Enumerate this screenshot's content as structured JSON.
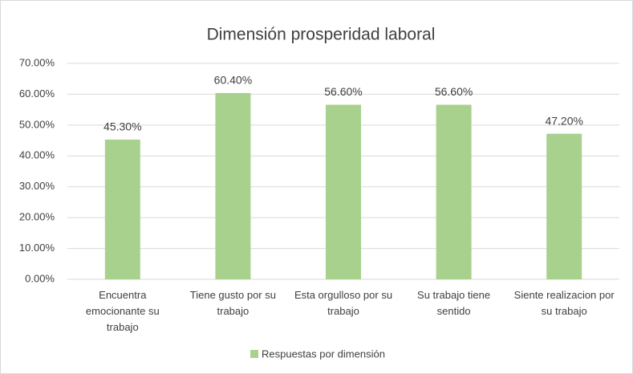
{
  "chart_data": {
    "type": "bar",
    "title": "Dimensión prosperidad laboral",
    "categories": [
      "Encuentra emocionante su trabajo",
      "Tiene gusto por su trabajo",
      "Esta orgulloso por su trabajo",
      "Su trabajo tiene sentido",
      "Siente realizacion por su trabajo"
    ],
    "series": [
      {
        "name": "Respuestas por dimensión",
        "color": "#a9d18e",
        "values": [
          45.3,
          60.4,
          56.6,
          56.6,
          47.2
        ],
        "value_labels": [
          "45.30%",
          "60.40%",
          "56.60%",
          "56.60%",
          "47.20%"
        ]
      }
    ],
    "ylim": [
      0,
      70
    ],
    "yticks": [
      {
        "value": 0,
        "label": "0.00%"
      },
      {
        "value": 10,
        "label": "10.00%"
      },
      {
        "value": 20,
        "label": "20.00%"
      },
      {
        "value": 30,
        "label": "30.00%"
      },
      {
        "value": 40,
        "label": "40.00%"
      },
      {
        "value": 50,
        "label": "50.00%"
      },
      {
        "value": 60,
        "label": "60.00%"
      },
      {
        "value": 70,
        "label": "70.00%"
      }
    ],
    "grid": true,
    "legend": "bottom"
  }
}
